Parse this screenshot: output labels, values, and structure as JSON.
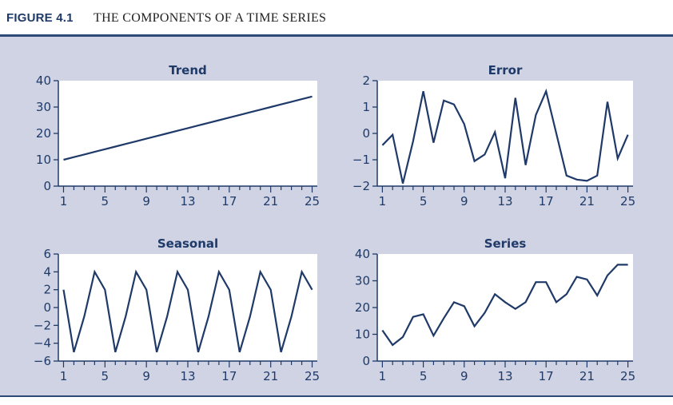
{
  "figure": {
    "number": "FIGURE 4.1",
    "title": "THE COMPONENTS OF A TIME SERIES"
  },
  "colors": {
    "panel_bg": "#cfd3e3",
    "plot_bg": "#ffffff",
    "line": "#1f3a68",
    "rule": "#2d4a77"
  },
  "chart_data": [
    {
      "type": "line",
      "title": "Trend",
      "x": [
        1,
        2,
        3,
        4,
        5,
        6,
        7,
        8,
        9,
        10,
        11,
        12,
        13,
        14,
        15,
        16,
        17,
        18,
        19,
        20,
        21,
        22,
        23,
        24,
        25
      ],
      "y": [
        10,
        11,
        12,
        13,
        14,
        15,
        16,
        17,
        18,
        19,
        20,
        21,
        22,
        23,
        24,
        25,
        26,
        27,
        28,
        29,
        30,
        31,
        32,
        33,
        34
      ],
      "ylim": [
        0,
        40
      ],
      "yticks": [
        0,
        10,
        20,
        30,
        40
      ],
      "ytick_labels": [
        "0",
        "10",
        "20",
        "30",
        "40"
      ],
      "xticks": [
        1,
        5,
        9,
        13,
        17,
        21,
        25
      ],
      "xtick_labels": [
        "1",
        "5",
        "9",
        "13",
        "17",
        "21",
        "25"
      ],
      "grid": false
    },
    {
      "type": "line",
      "title": "Error",
      "x": [
        1,
        2,
        3,
        4,
        5,
        6,
        7,
        8,
        9,
        10,
        11,
        12,
        13,
        14,
        15,
        16,
        17,
        18,
        19,
        20,
        21,
        22,
        23,
        24,
        25
      ],
      "y": [
        -0.45,
        -0.05,
        -1.9,
        -0.3,
        1.6,
        -0.35,
        1.25,
        1.1,
        0.35,
        -1.05,
        -0.8,
        0.05,
        -1.7,
        1.35,
        -1.2,
        0.7,
        1.6,
        0.0,
        -1.6,
        -1.75,
        -1.8,
        -1.6,
        1.2,
        -0.95,
        -0.05
      ],
      "ylim": [
        -2,
        2
      ],
      "yticks": [
        -2,
        -1,
        0,
        1,
        2
      ],
      "ytick_labels": [
        "−2",
        "−1",
        "0",
        "1",
        "2"
      ],
      "xticks": [
        1,
        5,
        9,
        13,
        17,
        21,
        25
      ],
      "xtick_labels": [
        "1",
        "5",
        "9",
        "13",
        "17",
        "21",
        "25"
      ],
      "grid": false
    },
    {
      "type": "line",
      "title": "Seasonal",
      "x": [
        1,
        2,
        3,
        4,
        5,
        6,
        7,
        8,
        9,
        10,
        11,
        12,
        13,
        14,
        15,
        16,
        17,
        18,
        19,
        20,
        21,
        22,
        23,
        24,
        25
      ],
      "y": [
        2,
        -5,
        -1,
        4,
        2,
        -5,
        -1,
        4,
        2,
        -5,
        -1,
        4,
        2,
        -5,
        -1,
        4,
        2,
        -5,
        -1,
        4,
        2,
        -5,
        -1,
        4,
        2
      ],
      "ylim": [
        -6,
        6
      ],
      "yticks": [
        -6,
        -4,
        -2,
        0,
        2,
        4,
        6
      ],
      "ytick_labels": [
        "−6",
        "−4",
        "−2",
        "0",
        "2",
        "4",
        "6"
      ],
      "xticks": [
        1,
        5,
        9,
        13,
        17,
        21,
        25
      ],
      "xtick_labels": [
        "1",
        "5",
        "9",
        "13",
        "17",
        "21",
        "25"
      ],
      "grid": false
    },
    {
      "type": "line",
      "title": "Series",
      "x": [
        1,
        2,
        3,
        4,
        5,
        6,
        7,
        8,
        9,
        10,
        11,
        12,
        13,
        14,
        15,
        16,
        17,
        18,
        19,
        20,
        21,
        22,
        23,
        24,
        25
      ],
      "y": [
        11.5,
        6,
        9,
        16.5,
        17.5,
        9.5,
        16,
        22,
        20.5,
        13,
        18,
        25,
        22,
        19.5,
        22,
        29.5,
        29.5,
        22,
        25,
        31.5,
        30.5,
        24.5,
        32,
        36,
        36
      ],
      "ylim": [
        0,
        40
      ],
      "yticks": [
        0,
        10,
        20,
        30,
        40
      ],
      "ytick_labels": [
        "0",
        "10",
        "20",
        "30",
        "40"
      ],
      "xticks": [
        1,
        5,
        9,
        13,
        17,
        21,
        25
      ],
      "xtick_labels": [
        "1",
        "5",
        "9",
        "13",
        "17",
        "21",
        "25"
      ],
      "grid": false
    }
  ]
}
